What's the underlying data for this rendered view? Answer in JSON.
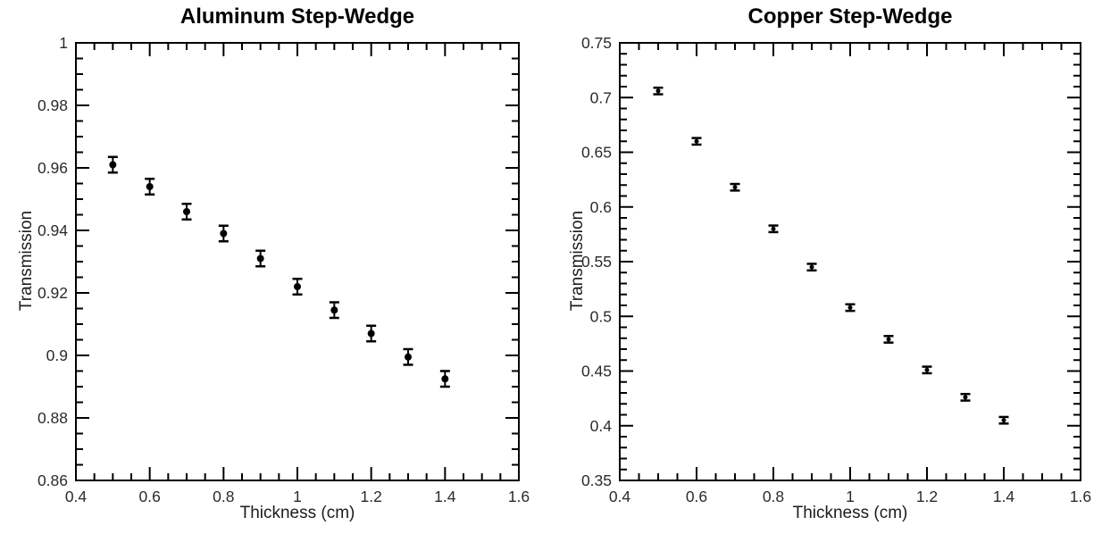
{
  "page": {
    "background_color": "#ffffff",
    "foreground_color": "#000000",
    "tick_label_color": "#2b2b2b"
  },
  "chart_data": [
    {
      "type": "scatter",
      "title": "Aluminum Step-Wedge",
      "xlabel": "Thickness (cm)",
      "ylabel": "Transmission",
      "series": [
        {
          "name": "aluminum-transmission",
          "x": [
            0.5,
            0.6,
            0.7,
            0.8,
            0.9,
            1.0,
            1.1,
            1.2,
            1.3,
            1.4
          ],
          "y": [
            0.961,
            0.954,
            0.946,
            0.939,
            0.931,
            0.922,
            0.9145,
            0.907,
            0.8995,
            0.8925
          ],
          "yerr": 0.0025
        }
      ],
      "xlim": [
        0.4,
        1.6
      ],
      "ylim": [
        0.86,
        1.0
      ],
      "xticks": [
        0.4,
        0.6,
        0.8,
        1.0,
        1.2,
        1.4,
        1.6
      ],
      "xtick_labels": [
        "0.4",
        "0.6",
        "0.8",
        "1",
        "1.2",
        "1.4",
        "1.6"
      ],
      "yticks": [
        1.0,
        0.98,
        0.96,
        0.94,
        0.92,
        0.9,
        0.88,
        0.86
      ],
      "ytick_labels": [
        "1",
        "0.98",
        "0.96",
        "0.94",
        "0.92",
        "0.9",
        "0.88",
        "0.86"
      ],
      "x_minor_step": 0.05,
      "y_minor_step": 0.005,
      "marker": "filled-circle",
      "marker_radius": 4,
      "point_color": "#000000",
      "grid": false,
      "legend": "none"
    },
    {
      "type": "scatter",
      "title": "Copper Step-Wedge",
      "xlabel": "Thickness (cm)",
      "ylabel": "Transmission",
      "series": [
        {
          "name": "copper-transmission",
          "x": [
            0.5,
            0.6,
            0.7,
            0.8,
            0.9,
            1.0,
            1.1,
            1.2,
            1.3,
            1.4
          ],
          "y": [
            0.706,
            0.66,
            0.618,
            0.58,
            0.545,
            0.508,
            0.479,
            0.451,
            0.426,
            0.405
          ],
          "yerr": 0.003
        }
      ],
      "xlim": [
        0.4,
        1.6
      ],
      "ylim": [
        0.35,
        0.75
      ],
      "xticks": [
        0.4,
        0.6,
        0.8,
        1.0,
        1.2,
        1.4,
        1.6
      ],
      "xtick_labels": [
        "0.4",
        "0.6",
        "0.8",
        "1",
        "1.2",
        "1.4",
        "1.6"
      ],
      "yticks": [
        0.75,
        0.7,
        0.65,
        0.6,
        0.55,
        0.5,
        0.45,
        0.4,
        0.35
      ],
      "ytick_labels": [
        "0.75",
        "0.7",
        "0.65",
        "0.6",
        "0.55",
        "0.5",
        "0.45",
        "0.4",
        "0.35"
      ],
      "x_minor_step": 0.05,
      "y_minor_step": 0.01,
      "marker": "filled-circle",
      "marker_radius": 2.5,
      "point_color": "#000000",
      "grid": false,
      "legend": "none"
    }
  ]
}
